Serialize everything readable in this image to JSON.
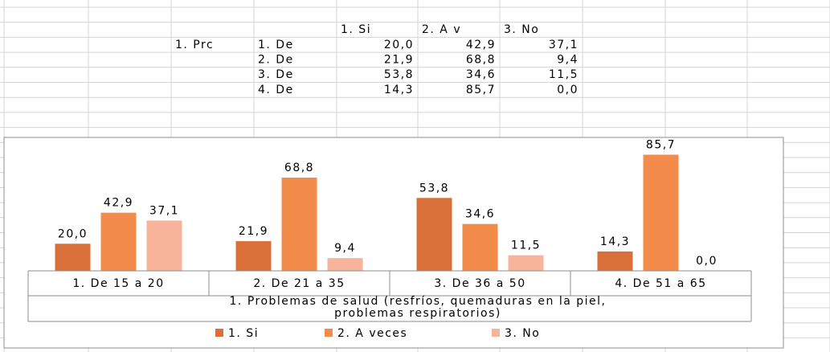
{
  "table": {
    "rows": [
      [
        "1. Si",
        "2. A v",
        "3. No"
      ],
      [
        "1. Prc",
        "1. De",
        "20,0",
        "42,9",
        "37,1"
      ],
      [
        "2. De",
        "21,9",
        "68,8",
        "9,4"
      ],
      [
        "3. De",
        "53,8",
        "34,6",
        "11,5"
      ],
      [
        "4. De",
        "14,3",
        "85,7",
        "0,0"
      ]
    ]
  },
  "chart_data": {
    "type": "bar",
    "categories": [
      "1. De 15 a 20",
      "2. De 21 a 35",
      "3. De 36 a 50",
      "4. De 51 a 65"
    ],
    "x_label": "1. Problemas de salud (resfríos, quemaduras en la piel, problemas respiratorios)",
    "ylim": [
      0,
      100
    ],
    "legend": "bottom",
    "series": [
      {
        "name": "1. Si",
        "color": "#d9703a",
        "values": [
          20.0,
          21.9,
          53.8,
          14.3
        ],
        "value_labels": [
          "20,0",
          "21,9",
          "53,8",
          "14,3"
        ]
      },
      {
        "name": "2. A veces",
        "color": "#f38b4a",
        "values": [
          42.9,
          68.8,
          34.6,
          85.7
        ],
        "value_labels": [
          "42,9",
          "68,8",
          "34,6",
          "85,7"
        ]
      },
      {
        "name": "3. No",
        "color": "#f7b49b",
        "values": [
          37.1,
          9.4,
          11.5,
          0.0
        ],
        "value_labels": [
          "37,1",
          "9,4",
          "11,5",
          "0,0"
        ]
      }
    ]
  }
}
